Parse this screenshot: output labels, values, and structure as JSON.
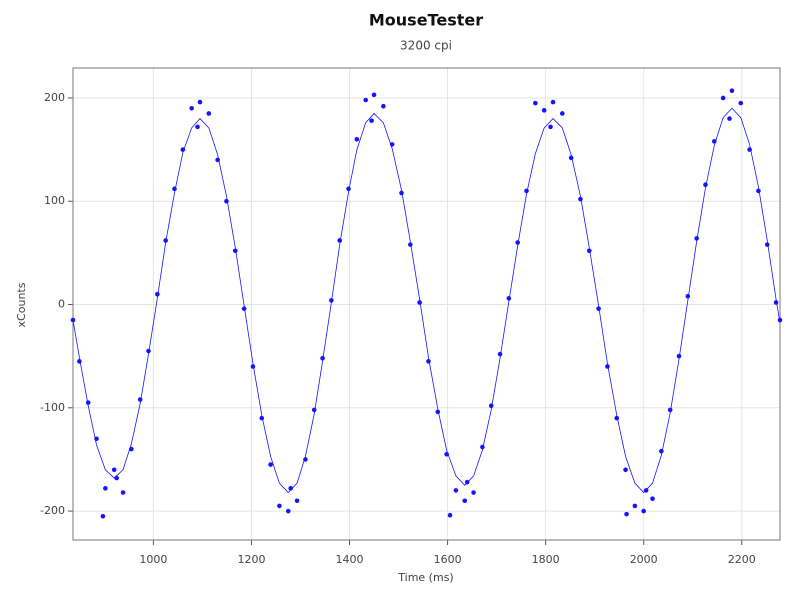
{
  "chart_data": {
    "type": "scatter",
    "title": "MouseTester",
    "subtitle": "3200 cpi",
    "x_label": "Time (ms)",
    "y_label": "xCounts",
    "xlim": [
      836,
      2278
    ],
    "ylim": [
      -228,
      229
    ],
    "xticks": [
      1000,
      1200,
      1400,
      1600,
      1800,
      2000,
      2200
    ],
    "yticks": [
      -200,
      -100,
      0,
      100,
      200
    ],
    "grid": true,
    "series": [
      {
        "type": "scatter",
        "color": "#1414ff",
        "x": [
          836,
          849,
          867,
          884,
          902,
          920,
          938,
          955,
          973,
          990,
          1008,
          1025,
          1043,
          1060,
          1078,
          1095,
          1113,
          1131,
          1149,
          1167,
          1185,
          1203,
          1221,
          1239,
          1257,
          1275,
          1293,
          1310,
          1328,
          1345,
          1363,
          1380,
          1398,
          1415,
          1433,
          1450,
          1469,
          1487,
          1506,
          1524,
          1543,
          1561,
          1580,
          1598,
          1617,
          1635,
          1653,
          1671,
          1689,
          1707,
          1725,
          1743,
          1761,
          1779,
          1797,
          1815,
          1834,
          1852,
          1871,
          1889,
          1908,
          1926,
          1945,
          1963,
          1982,
          2000,
          2018,
          2036,
          2054,
          2072,
          2090,
          2108,
          2126,
          2144,
          2162,
          2180,
          2198,
          2216,
          2234,
          2252,
          2270,
          2278,
          897,
          1605,
          1965,
          1090,
          1445,
          1810,
          2175,
          925,
          1280,
          1640,
          2005
        ],
        "values": [
          -15,
          -55,
          -95,
          -130,
          -178,
          -160,
          -182,
          -140,
          -92,
          -45,
          10,
          62,
          112,
          150,
          190,
          196,
          185,
          140,
          100,
          52,
          -4,
          -60,
          -110,
          -155,
          -195,
          -200,
          -190,
          -150,
          -102,
          -52,
          4,
          62,
          112,
          160,
          198,
          203,
          192,
          155,
          108,
          58,
          2,
          -55,
          -104,
          -145,
          -180,
          -190,
          -182,
          -138,
          -98,
          -48,
          6,
          60,
          110,
          195,
          188,
          196,
          185,
          142,
          102,
          52,
          -4,
          -60,
          -110,
          -160,
          -195,
          -200,
          -188,
          -142,
          -102,
          -50,
          8,
          64,
          116,
          158,
          200,
          207,
          195,
          150,
          110,
          58,
          2,
          -15,
          -205,
          -204,
          -203,
          172,
          178,
          172,
          180,
          -168,
          -178,
          -172,
          -180
        ]
      },
      {
        "type": "line",
        "color": "#1414ff",
        "x": [
          836,
          849,
          867,
          884,
          902,
          920,
          938,
          955,
          973,
          990,
          1008,
          1025,
          1043,
          1060,
          1078,
          1095,
          1113,
          1131,
          1149,
          1167,
          1185,
          1203,
          1221,
          1239,
          1257,
          1275,
          1293,
          1310,
          1328,
          1345,
          1363,
          1380,
          1398,
          1415,
          1433,
          1450,
          1469,
          1487,
          1506,
          1524,
          1543,
          1561,
          1580,
          1598,
          1617,
          1635,
          1653,
          1671,
          1689,
          1707,
          1725,
          1743,
          1761,
          1779,
          1797,
          1815,
          1834,
          1852,
          1871,
          1889,
          1908,
          1926,
          1945,
          1963,
          1982,
          2000,
          2018,
          2036,
          2054,
          2072,
          2090,
          2108,
          2126,
          2144,
          2162,
          2180,
          2198,
          2216,
          2234,
          2252,
          2270,
          2278
        ],
        "values": [
          -15,
          -51,
          -98,
          -136,
          -160,
          -168,
          -160,
          -135,
          -96,
          -48,
          6,
          60,
          108,
          147,
          171,
          180,
          171,
          145,
          105,
          55,
          -1,
          -57,
          -107,
          -147,
          -173,
          -182,
          -173,
          -147,
          -106,
          -55,
          2,
          58,
          109,
          150,
          176,
          185,
          176,
          151,
          111,
          61,
          5,
          -51,
          -101,
          -141,
          -166,
          -175,
          -166,
          -141,
          -102,
          -52,
          3,
          57,
          107,
          146,
          171,
          180,
          171,
          145,
          105,
          55,
          -1,
          -57,
          -107,
          -147,
          -173,
          -182,
          -173,
          -146,
          -105,
          -53,
          4,
          61,
          113,
          154,
          181,
          190,
          181,
          155,
          114,
          62,
          5,
          -18
        ]
      }
    ]
  }
}
